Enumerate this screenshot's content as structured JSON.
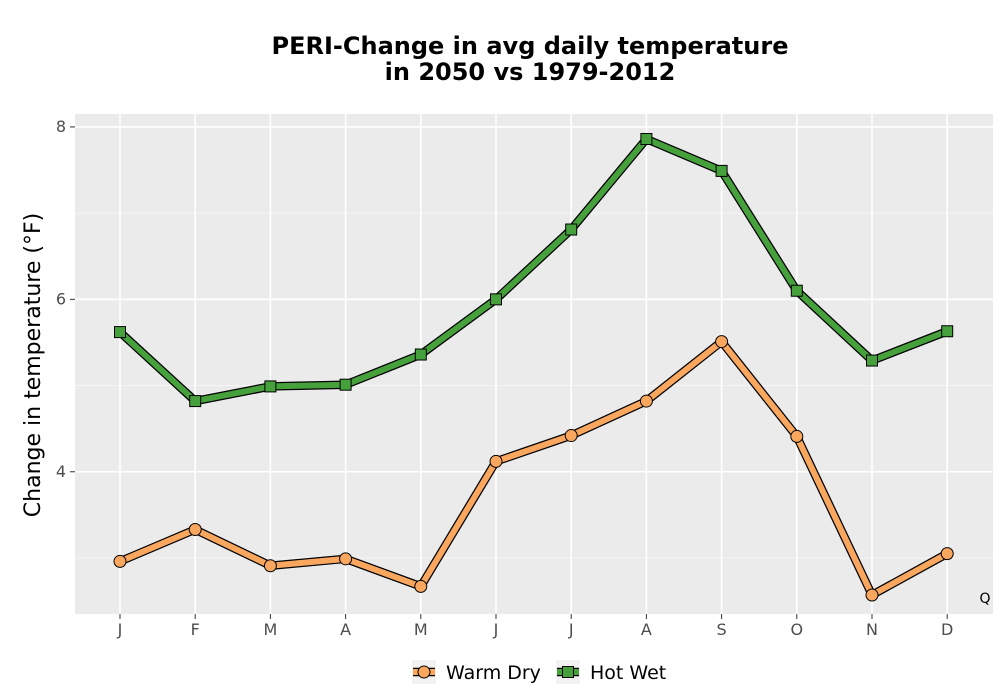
{
  "chart_data": {
    "type": "line",
    "title": [
      "PERI-Change in avg daily temperature",
      "in 2050 vs 1979-2012"
    ],
    "xlabel": "",
    "ylabel": "Change in temperature (°F)",
    "categories": [
      "J",
      "F",
      "M",
      "A",
      "M",
      "J",
      "J",
      "A",
      "S",
      "O",
      "N",
      "D"
    ],
    "ylim": [
      2.35,
      8.15
    ],
    "yticks": [
      4,
      6,
      8
    ],
    "grid": true,
    "legend_position": "bottom",
    "series": [
      {
        "name": "Warm Dry",
        "color": "#f9a75f",
        "marker": "circle",
        "values": [
          2.96,
          3.33,
          2.91,
          2.99,
          2.67,
          4.12,
          4.42,
          4.82,
          5.51,
          4.41,
          2.57,
          3.05
        ]
      },
      {
        "name": "Hot Wet",
        "color": "#46a03c",
        "marker": "square",
        "values": [
          5.62,
          4.82,
          4.99,
          5.01,
          5.36,
          6.0,
          6.81,
          7.86,
          7.49,
          6.1,
          5.29,
          5.63
        ]
      }
    ]
  },
  "corner_label": "Q"
}
